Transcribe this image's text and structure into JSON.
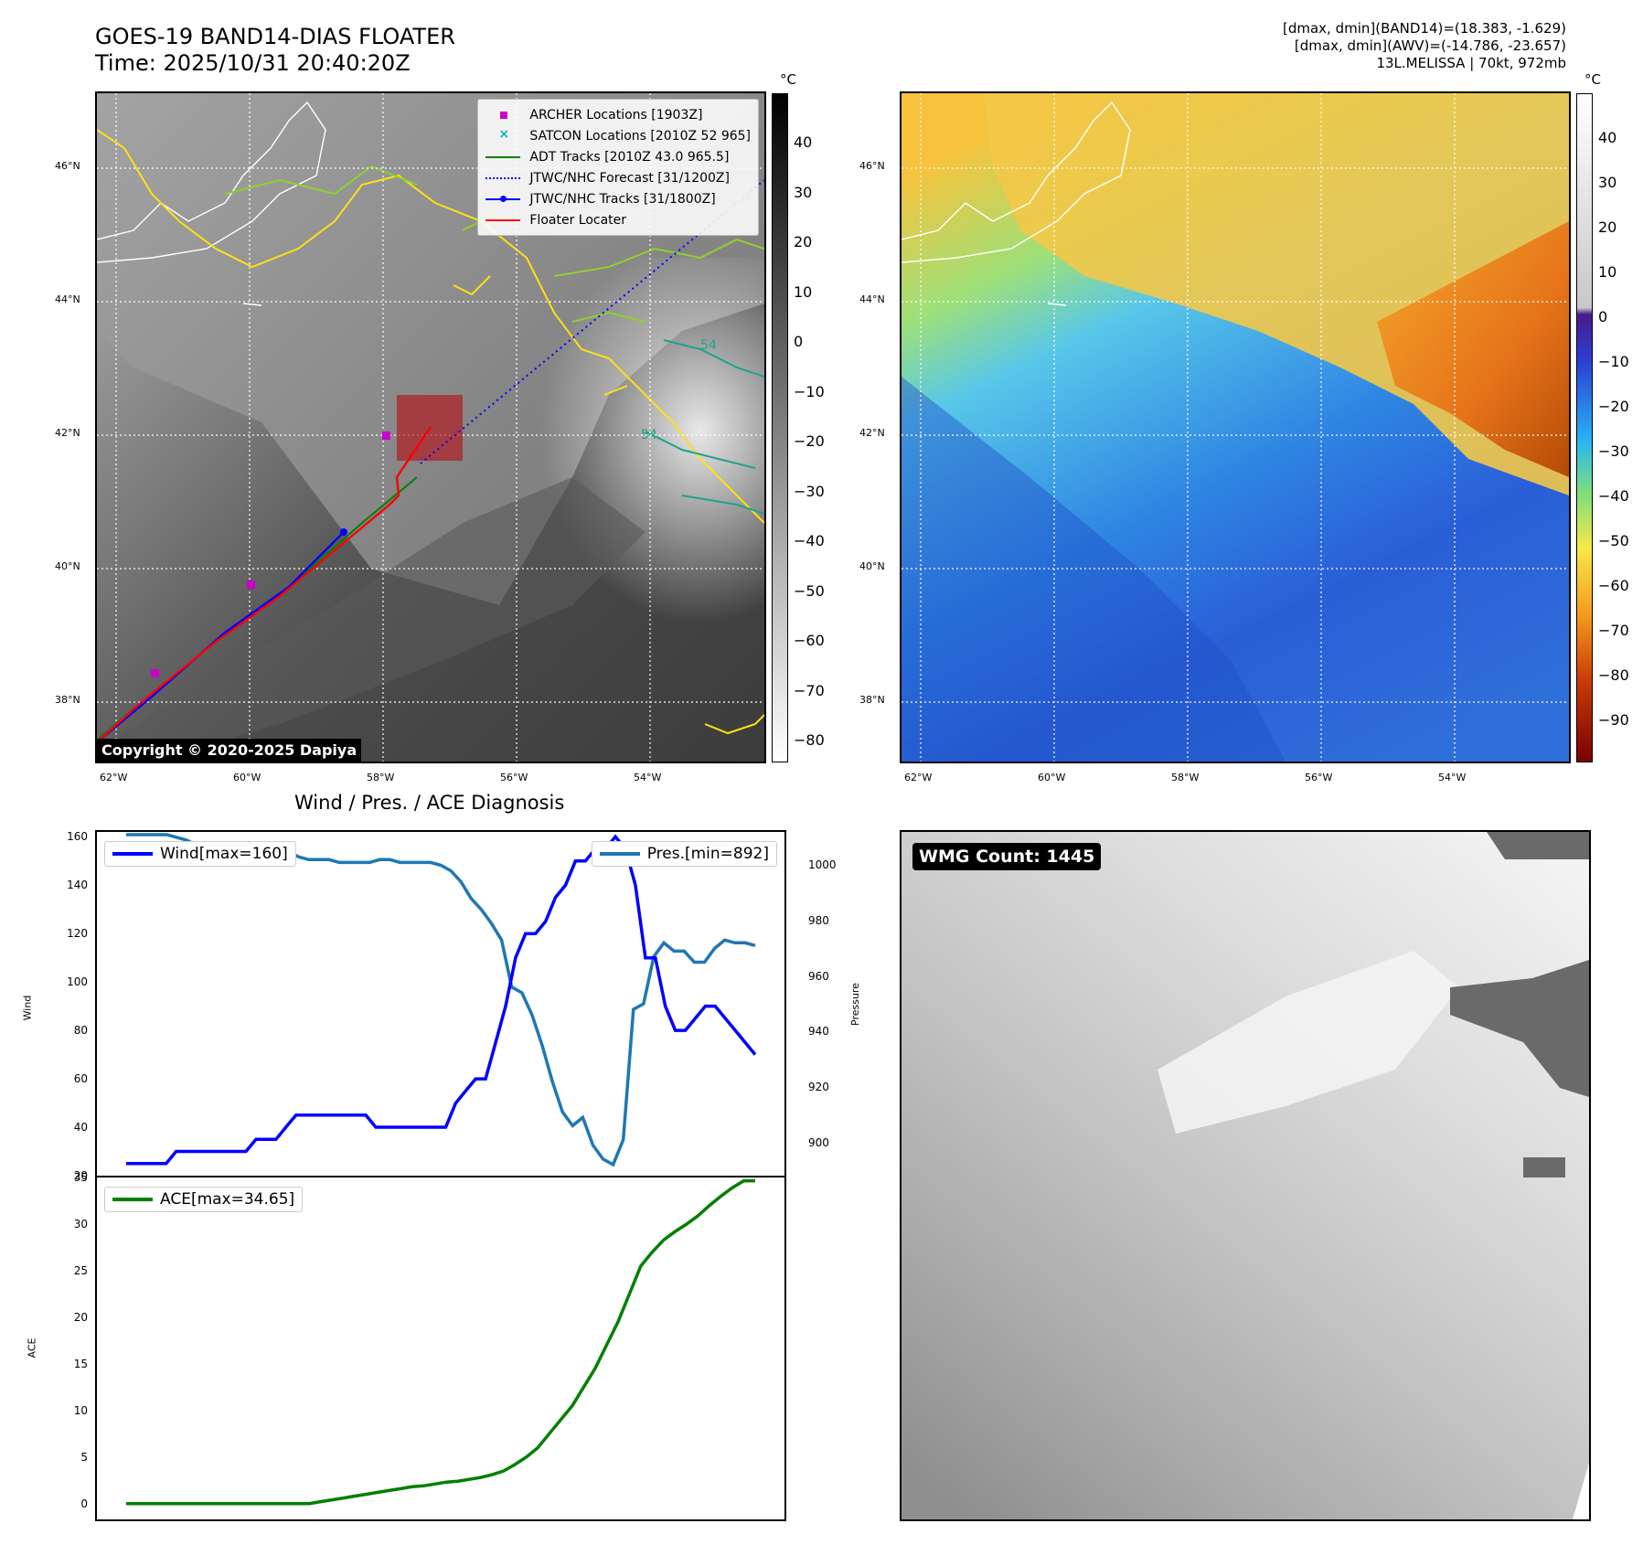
{
  "header": {
    "title_line1": "GOES-19 BAND14-DIAS FLOATER",
    "title_line2": "Time: 2025/10/31 20:40:20Z",
    "info_line1": "[dmax, dmin](BAND14)=(18.383, -1.629)",
    "info_line2": "[dmax, dmin](AWV)=(-14.786, -23.657)",
    "info_line3": "13L.MELISSA | 70kt, 972mb"
  },
  "map_axes": {
    "lat_labels": [
      "46°N",
      "44°N",
      "42°N",
      "40°N",
      "38°N"
    ],
    "lon_labels": [
      "62°W",
      "60°W",
      "58°W",
      "56°W",
      "54°W"
    ]
  },
  "left_map": {
    "colorbar_unit": "°C",
    "colorbar_ticks": [
      "40",
      "30",
      "20",
      "10",
      "0",
      "−10",
      "−20",
      "−30",
      "−40",
      "−50",
      "−60",
      "−70",
      "−80"
    ],
    "copyright": "Copyright © 2020-2025 Dapiya",
    "legend": [
      {
        "label": "ARCHER Locations [1903Z]",
        "color": "#cc00cc",
        "kind": "square"
      },
      {
        "label": "SATCON Locations [2010Z 52 965]",
        "color": "#00b8b8",
        "kind": "cross"
      },
      {
        "label": "ADT Tracks [2010Z 43.0 965.5]",
        "color": "#008000",
        "kind": "line"
      },
      {
        "label": "JTWC/NHC Forecast [31/1200Z]",
        "color": "#0000ff",
        "kind": "dotted"
      },
      {
        "label": "JTWC/NHC Tracks [31/1800Z]",
        "color": "#0000ff",
        "kind": "linedot"
      },
      {
        "label": "Floater Locater",
        "color": "#ff0000",
        "kind": "line"
      }
    ],
    "contour_labels": [
      "54",
      "54"
    ]
  },
  "right_map": {
    "colorbar_unit": "°C",
    "colorbar_ticks": [
      "40",
      "30",
      "20",
      "10",
      "0",
      "−10",
      "−20",
      "−30",
      "−40",
      "−50",
      "−60",
      "−70",
      "−80",
      "−90"
    ]
  },
  "colors": {
    "wind": "#0000ff",
    "pressure": "#1f77b4",
    "ace": "#008000",
    "floater_box": "#b4161b",
    "ir_coast": "#ffffff"
  },
  "chart_data": [
    {
      "type": "line",
      "title": "Wind / Pres. / ACE Diagnosis",
      "ylabel": "Wind",
      "ylim": [
        20,
        162
      ],
      "yticks": [
        "160",
        "140",
        "120",
        "100",
        "80",
        "60",
        "40",
        "20"
      ],
      "series": [
        {
          "name": "Wind[max=160]",
          "values": [
            25,
            25,
            25,
            25,
            25,
            30,
            30,
            30,
            30,
            30,
            30,
            30,
            30,
            35,
            35,
            35,
            40,
            45,
            45,
            45,
            45,
            45,
            45,
            45,
            45,
            40,
            40,
            40,
            40,
            40,
            40,
            40,
            40,
            50,
            55,
            60,
            60,
            75,
            90,
            110,
            120,
            120,
            125,
            135,
            140,
            150,
            150,
            155,
            155,
            160,
            155,
            140,
            110,
            110,
            90,
            80,
            80,
            85,
            90,
            90,
            85,
            80,
            75,
            70
          ]
        }
      ]
    },
    {
      "type": "line",
      "ylabel": "Pressure",
      "ylim": [
        888,
        1012
      ],
      "yticks": [
        "1000",
        "980",
        "960",
        "940",
        "920",
        "900"
      ],
      "series": [
        {
          "name": "Pres.[min=892]",
          "values": [
            1011,
            1011,
            1011,
            1011,
            1011,
            1010,
            1009,
            1007,
            1006,
            1006,
            1006,
            1006,
            1006,
            1005,
            1005,
            1005,
            1005,
            1003,
            1002,
            1002,
            1002,
            1001,
            1001,
            1001,
            1001,
            1002,
            1002,
            1001,
            1001,
            1001,
            1001,
            1000,
            998,
            994,
            988,
            984,
            979,
            973,
            956,
            954,
            946,
            935,
            922,
            911,
            906,
            909,
            899,
            894,
            892,
            901,
            948,
            950,
            967,
            972,
            969,
            969,
            965,
            965,
            970,
            973,
            972,
            972,
            971
          ]
        }
      ]
    },
    {
      "type": "line",
      "ylabel": "ACE",
      "ylim": [
        -1.7,
        35
      ],
      "yticks": [
        "35",
        "30",
        "25",
        "20",
        "15",
        "10",
        "5",
        "0"
      ],
      "series": [
        {
          "name": "ACE[max=34.65]",
          "values": [
            0,
            0,
            0,
            0,
            0,
            0,
            0,
            0,
            0,
            0,
            0,
            0,
            0,
            0,
            0,
            0,
            0,
            0.2,
            0.4,
            0.6,
            0.8,
            1.0,
            1.2,
            1.4,
            1.6,
            1.8,
            1.9,
            2.1,
            2.3,
            2.4,
            2.6,
            2.8,
            3.1,
            3.5,
            4.2,
            5.0,
            6.0,
            7.5,
            9.0,
            10.5,
            12.5,
            14.5,
            17.0,
            19.5,
            22.5,
            25.5,
            27.0,
            28.3,
            29.2,
            30.0,
            30.9,
            32.0,
            33.0,
            33.9,
            34.65,
            34.65
          ]
        }
      ]
    }
  ],
  "wmg_panel": {
    "label": "WMG Count: 1445"
  }
}
